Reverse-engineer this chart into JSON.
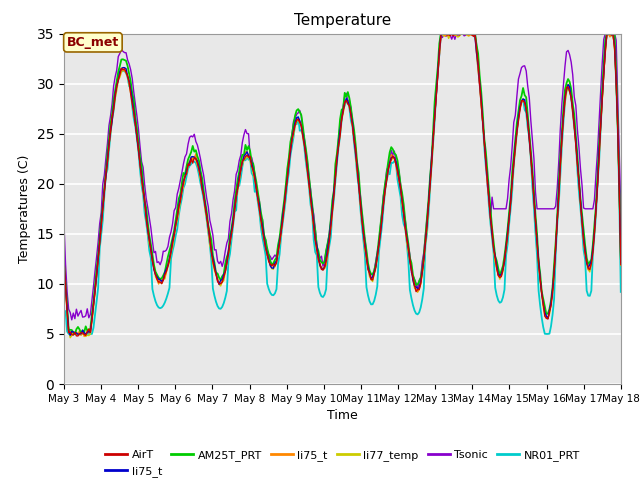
{
  "title": "Temperature",
  "xlabel": "Time",
  "ylabel": "Temperatures (C)",
  "annotation_text": "BC_met",
  "annotation_bg": "#ffffcc",
  "annotation_border": "#996600",
  "ylim": [
    0,
    35
  ],
  "yticks": [
    0,
    5,
    10,
    15,
    20,
    25,
    30,
    35
  ],
  "date_labels": [
    "May 3",
    "May 4",
    "May 5",
    "May 6",
    "May 7",
    "May 8",
    "May 9",
    "May 10",
    "May 11",
    "May 12",
    "May 13",
    "May 14",
    "May 15",
    "May 16",
    "May 17",
    "May 18"
  ],
  "series_colors": {
    "AirT": "#cc0000",
    "li75_t_b": "#0000cc",
    "AM25T_PRT": "#00cc00",
    "li75_t": "#ff8800",
    "li77_temp": "#cccc00",
    "Tsonic": "#8800cc",
    "NR01_PRT": "#00cccc"
  },
  "legend_entries": [
    {
      "label": "AirT",
      "color": "#cc0000"
    },
    {
      "label": "li75_t",
      "color": "#0000cc"
    },
    {
      "label": "AM25T_PRT",
      "color": "#00cc00"
    },
    {
      "label": "li75_t",
      "color": "#ff8800"
    },
    {
      "label": "li77_temp",
      "color": "#cccc00"
    },
    {
      "label": "Tsonic",
      "color": "#8800cc"
    },
    {
      "label": "NR01_PRT",
      "color": "#00cccc"
    }
  ],
  "bg_color": "#e8e8e8",
  "figsize": [
    6.4,
    4.8
  ],
  "dpi": 100,
  "n_days": 15,
  "pts_per_day": 24,
  "peaks": [
    1.6,
    3.6,
    4.9,
    6.3,
    7.6,
    8.8,
    10.1,
    11.2,
    12.4,
    13.5,
    14.5
  ],
  "peak_heights": [
    31.5,
    22.0,
    23.0,
    26.5,
    28.3,
    22.5,
    32.5,
    29.8,
    28.3,
    28.5,
    28.5
  ],
  "troughs": [
    0.8,
    2.5,
    4.2,
    5.7,
    7.0,
    8.3,
    9.6,
    11.8,
    12.8,
    13.2,
    14.2
  ],
  "trough_heights": [
    8.0,
    10.5,
    10.0,
    12.0,
    11.5,
    10.5,
    10.0,
    11.0,
    11.5,
    11.0,
    12.0
  ]
}
